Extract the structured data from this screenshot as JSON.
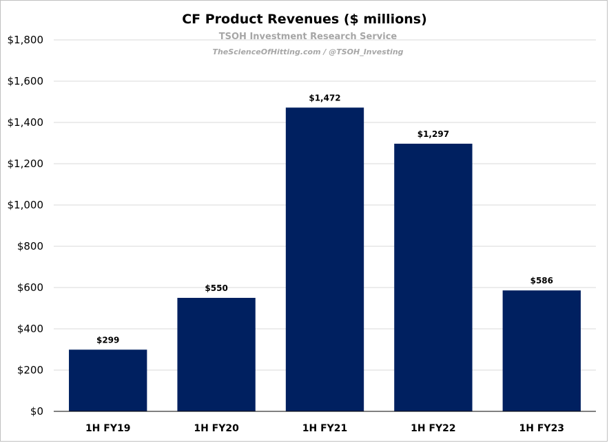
{
  "chart_data": {
    "type": "bar",
    "title": "CF Product Revenues ($ millions)",
    "subtitle": "TSOH Investment Research Service",
    "credit": "TheScienceOfHitting.com / @TSOH_Investing",
    "categories": [
      "1H FY19",
      "1H FY20",
      "1H FY21",
      "1H FY22",
      "1H FY23"
    ],
    "values": [
      299,
      550,
      1472,
      1297,
      586
    ],
    "data_labels": [
      "$299",
      "$550",
      "$1,472",
      "$1,297",
      "$586"
    ],
    "y_ticks": [
      "$0",
      "$200",
      "$400",
      "$600",
      "$800",
      "$1,000",
      "$1,200",
      "$1,400",
      "$1,600",
      "$1,800"
    ],
    "ylim": [
      0,
      1800
    ],
    "grid": true,
    "bar_color": "#002060",
    "xlabel": "",
    "ylabel": ""
  }
}
